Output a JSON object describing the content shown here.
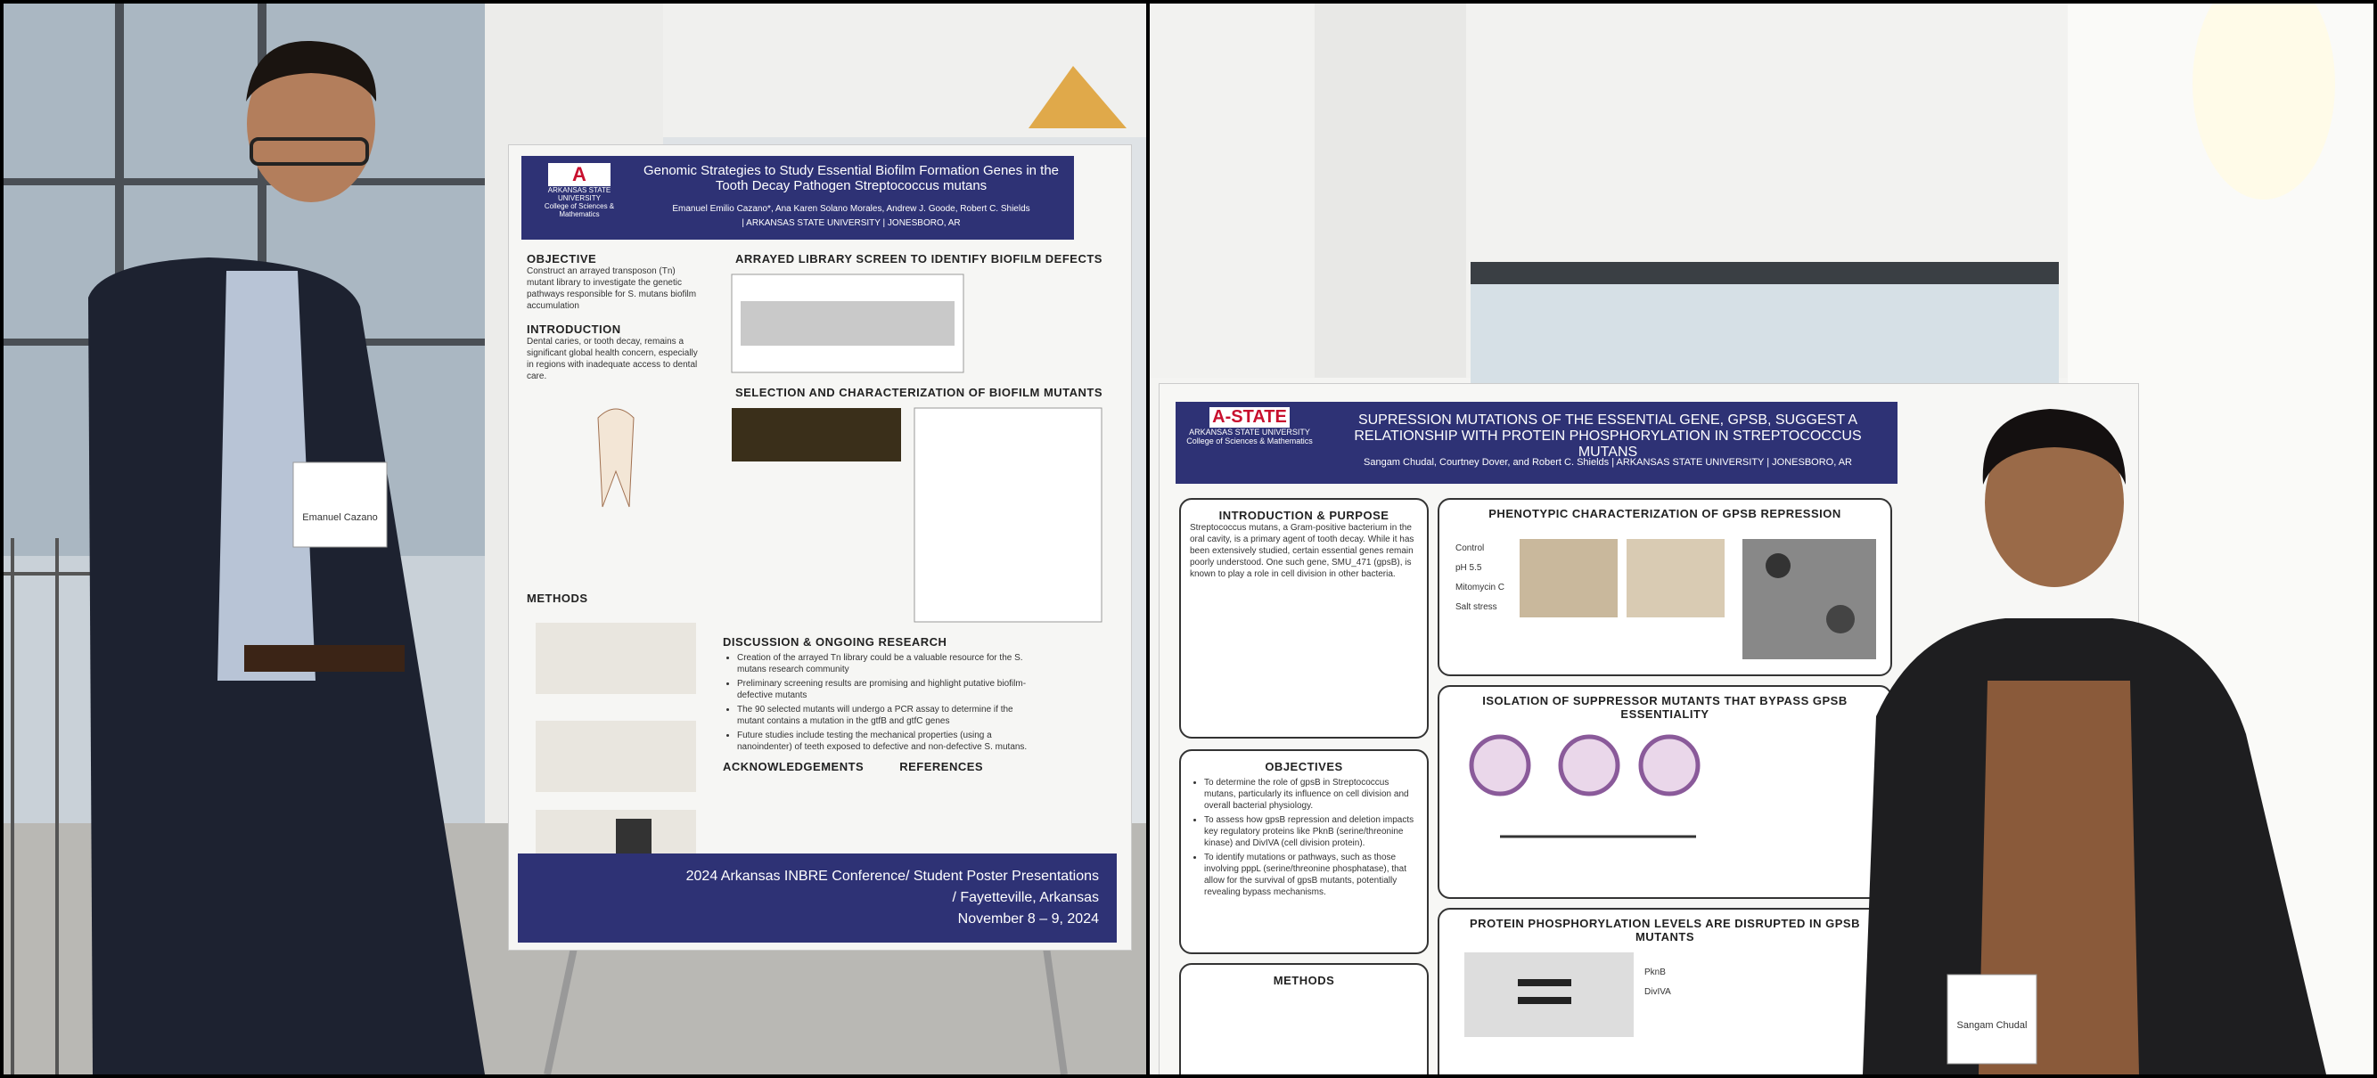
{
  "left_photo": {
    "badge_name": "Emanuel Cazano",
    "poster": {
      "logo": {
        "university": "ARKANSAS STATE UNIVERSITY",
        "college": "College of Sciences & Mathematics"
      },
      "title": "Genomic Strategies to Study Essential Biofilm Formation Genes in the Tooth Decay Pathogen Streptococcus mutans",
      "authors": "Emanuel Emilio Cazano*, Ana Karen Solano Morales, Andrew J. Goode, Robert C. Shields",
      "affiliation": "| ARKANSAS STATE UNIVERSITY | JONESBORO, AR",
      "objective": {
        "heading": "OBJECTIVE",
        "text": "Construct an arrayed transposon (Tn) mutant library to investigate the genetic pathways responsible for S. mutans biofilm accumulation"
      },
      "introduction": {
        "heading": "INTRODUCTION",
        "text": "Dental caries, or tooth decay, remains a significant global health concern, especially in regions with inadequate access to dental care."
      },
      "methods": {
        "heading": "METHODS"
      },
      "screen": {
        "heading": "ARRAYED LIBRARY SCREEN TO IDENTIFY BIOFILM DEFECTS"
      },
      "selection": {
        "heading": "SELECTION AND CHARACTERIZATION OF BIOFILM MUTANTS"
      },
      "discussion": {
        "heading": "DISCUSSION & ONGOING RESEARCH",
        "bullets": [
          "Creation of the arrayed Tn library could be a valuable resource for the S. mutans research community",
          "Preliminary screening results are promising and highlight putative biofilm-defective mutants",
          "The 90 selected mutants will undergo a PCR assay to determine if the mutant contains a mutation in the gtfB and gtfC genes",
          "Future studies include testing the mechanical properties (using a nanoindenter) of teeth exposed to defective and non-defective S. mutans."
        ]
      },
      "acknowledgements": {
        "heading": "ACKNOWLEDGEMENTS"
      },
      "references": {
        "heading": "REFERENCES"
      },
      "footer": [
        "2024 Arkansas INBRE Conference/ Student Poster Presentations",
        "/ Fayetteville, Arkansas",
        "November 8 – 9, 2024"
      ]
    }
  },
  "right_photo": {
    "badge_name": "Sangam Chudal",
    "poster": {
      "logo": {
        "mark": "A-STATE",
        "university": "ARKANSAS STATE UNIVERSITY",
        "college": "College of Sciences & Mathematics"
      },
      "title": "SUPRESSION MUTATIONS OF THE ESSENTIAL GENE, GPSB, SUGGEST A RELATIONSHIP WITH PROTEIN PHOSPHORYLATION IN STREPTOCOCCUS MUTANS",
      "authors": "Sangam Chudal, Courtney Dover, and Robert C. Shields",
      "affiliation": "| ARKANSAS STATE UNIVERSITY | JONESBORO, AR",
      "introduction": {
        "heading": "INTRODUCTION & PURPOSE",
        "text": "Streptococcus mutans, a Gram-positive bacterium in the oral cavity, is a primary agent of tooth decay. While it has been extensively studied, certain essential genes remain poorly understood. One such gene, SMU_471 (gpsB), is known to play a role in cell division in other bacteria."
      },
      "phenotypic": {
        "heading": "PHENOTYPIC CHARACTERIZATION OF GPSB REPRESSION",
        "rows": [
          "Control",
          "pH 5.5",
          "Mitomycin C",
          "Salt stress"
        ]
      },
      "objectives": {
        "heading": "OBJECTIVES",
        "bullets": [
          "To determine the role of gpsB in Streptococcus mutans, particularly its influence on cell division and overall bacterial physiology.",
          "To assess how gpsB repression and deletion impacts key regulatory proteins like PknB (serine/threonine kinase) and DivIVA (cell division protein).",
          "To identify mutations or pathways, such as those involving pppL (serine/threonine phosphatase), that allow for the survival of gpsB mutants, potentially revealing bypass mechanisms."
        ]
      },
      "isolation": {
        "heading": "ISOLATION OF SUPPRESSOR MUTANTS THAT BYPASS GPSB ESSENTIALITY"
      },
      "methods": {
        "heading": "METHODS"
      },
      "phosphorylation": {
        "heading": "PROTEIN PHOSPHORYLATION LEVELS ARE DISRUPTED IN GPSB MUTANTS",
        "bands": [
          "PknB",
          "DivIVA"
        ]
      }
    }
  }
}
